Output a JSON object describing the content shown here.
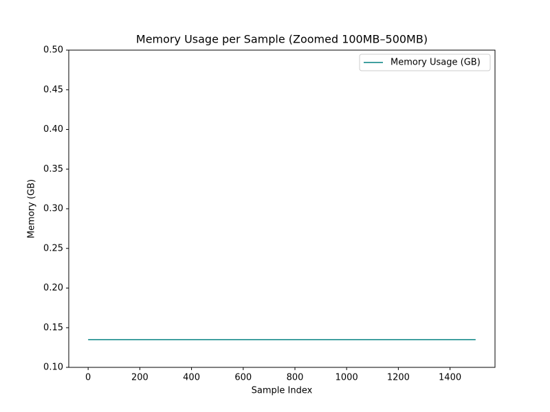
{
  "chart_data": {
    "type": "line",
    "title": "Memory Usage per Sample (Zoomed 100MB–500MB)",
    "x_label": "Sample Index",
    "y_label": "Memory (GB)",
    "x": [
      0,
      1499
    ],
    "series": [
      {
        "name": "Memory Usage (GB)",
        "color": "#008080",
        "values": [
          0.135,
          0.135
        ]
      }
    ],
    "xlim": [
      -74.95,
      1573.95
    ],
    "xticks": [
      0,
      200,
      400,
      600,
      800,
      1000,
      1200,
      1400
    ],
    "ylim": [
      0.1,
      0.5
    ],
    "yticks": [
      {
        "value": 0.1,
        "label": "0.10"
      },
      0.15,
      {
        "value": 0.2,
        "label": "0.20"
      },
      0.25,
      {
        "value": 0.3,
        "label": "0.30"
      },
      0.35,
      {
        "value": 0.4,
        "label": "0.40"
      },
      0.45,
      {
        "value": 0.5,
        "label": "0.50"
      }
    ],
    "grid": false,
    "legend": "upper right"
  }
}
